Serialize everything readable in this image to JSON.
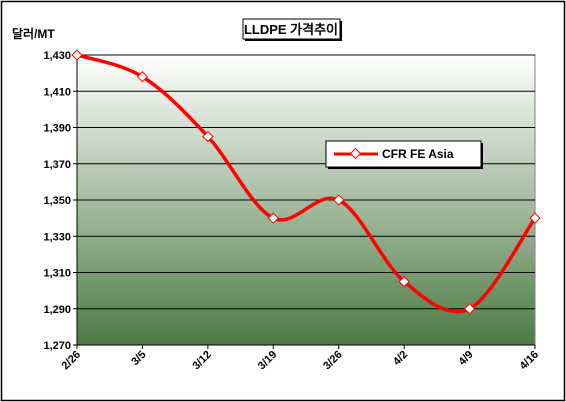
{
  "chart_data": {
    "type": "line",
    "title": "LLDPE 가격추이",
    "ylabel": "달러/MT",
    "categories": [
      "2/26",
      "3/5",
      "3/12",
      "3/19",
      "3/26",
      "4/2",
      "4/9",
      "4/16"
    ],
    "series": [
      {
        "name": "CFR FE Asia",
        "values": [
          1430,
          1418,
          1385,
          1340,
          1350,
          1305,
          1290,
          1340
        ],
        "color": "#ff0000"
      }
    ],
    "ylim": [
      1270,
      1430
    ],
    "yticks": [
      1270,
      1290,
      1310,
      1330,
      1350,
      1370,
      1390,
      1410,
      1430
    ],
    "ytick_labels": [
      "1,270",
      "1,290",
      "1,310",
      "1,330",
      "1,350",
      "1,370",
      "1,390",
      "1,410",
      "1,430"
    ],
    "grid": true,
    "legend_position": "right-middle",
    "plot_gradient_top": "#ffffff",
    "plot_gradient_bottom": "#4d7a45"
  }
}
